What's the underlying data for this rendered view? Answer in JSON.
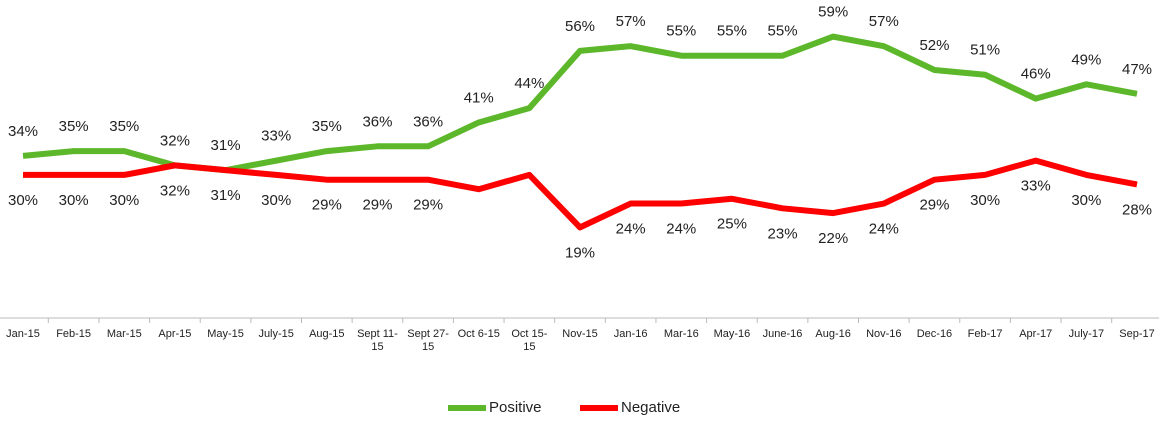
{
  "chart_data": {
    "type": "line",
    "categories": [
      "Jan-15",
      "Feb-15",
      "Mar-15",
      "Apr-15",
      "May-15",
      "July-15",
      "Aug-15",
      "Sept 11-15",
      "Sept 27-15",
      "Oct 6-15",
      "Oct 15-15",
      "Nov-15",
      "Jan-16",
      "Mar-16",
      "May-16",
      "June-16",
      "Aug-16",
      "Nov-16",
      "Dec-16",
      "Feb-17",
      "Apr-17",
      "July-17",
      "Sep-17"
    ],
    "series": [
      {
        "name": "Positive",
        "color": "#5cb82a",
        "values": [
          34,
          35,
          35,
          32,
          31,
          33,
          35,
          36,
          36,
          41,
          44,
          56,
          57,
          55,
          55,
          55,
          59,
          57,
          52,
          51,
          46,
          49,
          47
        ],
        "value_labels": [
          "34%",
          "35%",
          "35%",
          "32%",
          "31%",
          "33%",
          "35%",
          "36%",
          "36%",
          "41%",
          "44%",
          "56%",
          "57%",
          "55%",
          "55%",
          "55%",
          "59%",
          "57%",
          "52%",
          "51%",
          "46%",
          "49%",
          "47%"
        ]
      },
      {
        "name": "Negative",
        "color": "#ff0000",
        "values": [
          30,
          30,
          30,
          32,
          31,
          30,
          29,
          29,
          29,
          27,
          30,
          19,
          24,
          24,
          25,
          23,
          22,
          24,
          29,
          30,
          33,
          30,
          28
        ],
        "value_labels": [
          "30%",
          "30%",
          "30%",
          "32%",
          "31%",
          "30%",
          "29%",
          "29%",
          "29%",
          null,
          null,
          "19%",
          "24%",
          "24%",
          "25%",
          "23%",
          "22%",
          "24%",
          "29%",
          "30%",
          "33%",
          "30%",
          "28%"
        ]
      }
    ],
    "ylim": [
      0,
      65
    ],
    "legend": "bottom"
  }
}
